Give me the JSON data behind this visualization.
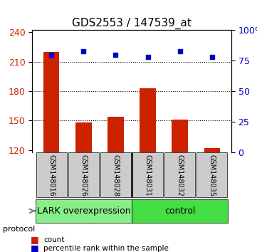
{
  "title": "GDS2553 / 147539_at",
  "samples": [
    "GSM148016",
    "GSM148026",
    "GSM148028",
    "GSM148031",
    "GSM148032",
    "GSM148035"
  ],
  "count_values": [
    220,
    148,
    154,
    183,
    151,
    122
  ],
  "percentile_values": [
    80,
    83,
    80,
    78,
    83,
    78
  ],
  "ylim_left": [
    118,
    242
  ],
  "ylim_right": [
    0,
    100
  ],
  "yticks_left": [
    120,
    150,
    180,
    210,
    240
  ],
  "yticks_right": [
    0,
    25,
    50,
    75,
    100
  ],
  "hlines": [
    210,
    180,
    150
  ],
  "bar_color": "#cc2200",
  "scatter_color": "#0000cc",
  "groups": [
    {
      "label": "LARK overexpression",
      "start": 0,
      "end": 3,
      "color": "#88ee88"
    },
    {
      "label": "control",
      "start": 3,
      "end": 6,
      "color": "#44dd44"
    }
  ],
  "protocol_label": "protocol",
  "legend_count_label": "count",
  "legend_percentile_label": "percentile rank within the sample",
  "xlabel_color": "black",
  "bar_bottom": 118,
  "bar_width": 0.5,
  "sample_label_area_color": "#cccccc",
  "right_axis_color": "#0000cc",
  "left_axis_color": "#cc2200",
  "title_fontsize": 11,
  "tick_fontsize": 9,
  "group_fontsize": 9
}
